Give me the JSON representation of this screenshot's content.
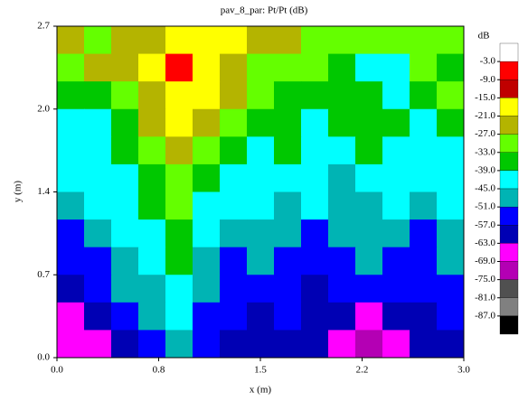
{
  "chart_data": {
    "type": "heatmap",
    "title": "pav_8_par: Pt/Pt (dB)",
    "x_label": "x (m)",
    "y_label": "y (m)",
    "xlim": [
      0,
      3
    ],
    "ylim": [
      0,
      2.7
    ],
    "xticks": [
      {
        "value": 0,
        "label": "0.0"
      },
      {
        "value": 0.75,
        "label": "0.8"
      },
      {
        "value": 1.5,
        "label": "1.5"
      },
      {
        "value": 2.25,
        "label": "2.2"
      },
      {
        "value": 3,
        "label": "3.0"
      }
    ],
    "yticks": [
      {
        "value": 0,
        "label": "0.0"
      },
      {
        "value": 0.675,
        "label": "0.7"
      },
      {
        "value": 1.35,
        "label": "1.4"
      },
      {
        "value": 2.025,
        "label": "2.0"
      },
      {
        "value": 2.7,
        "label": "2.7"
      }
    ],
    "z": [
      [
        -24,
        -30,
        -24,
        -24,
        -18,
        -18,
        -18,
        -24,
        -24,
        -30,
        -30,
        -30,
        -30,
        -30,
        -30
      ],
      [
        -30,
        -24,
        -24,
        -18,
        -6,
        -18,
        -24,
        -30,
        -30,
        -30,
        -36,
        -42,
        -42,
        -30,
        -36
      ],
      [
        -36,
        -36,
        -30,
        -24,
        -18,
        -18,
        -24,
        -30,
        -36,
        -36,
        -36,
        -36,
        -42,
        -36,
        -30
      ],
      [
        -42,
        -42,
        -36,
        -24,
        -18,
        -24,
        -30,
        -36,
        -36,
        -42,
        -36,
        -36,
        -36,
        -42,
        -36
      ],
      [
        -42,
        -42,
        -36,
        -30,
        -24,
        -30,
        -36,
        -42,
        -36,
        -42,
        -42,
        -36,
        -42,
        -42,
        -42
      ],
      [
        -42,
        -42,
        -42,
        -36,
        -30,
        -36,
        -42,
        -42,
        -42,
        -42,
        -48,
        -42,
        -42,
        -42,
        -42
      ],
      [
        -48,
        -42,
        -42,
        -36,
        -30,
        -42,
        -42,
        -42,
        -48,
        -42,
        -48,
        -48,
        -42,
        -48,
        -42
      ],
      [
        -54,
        -48,
        -42,
        -42,
        -36,
        -42,
        -48,
        -48,
        -48,
        -54,
        -48,
        -48,
        -48,
        -54,
        -48
      ],
      [
        -54,
        -54,
        -48,
        -42,
        -36,
        -48,
        -54,
        -48,
        -54,
        -54,
        -54,
        -48,
        -54,
        -54,
        -48
      ],
      [
        -60,
        -54,
        -48,
        -48,
        -42,
        -48,
        -54,
        -54,
        -54,
        -60,
        -54,
        -54,
        -54,
        -54,
        -54
      ],
      [
        -66,
        -60,
        -54,
        -48,
        -42,
        -54,
        -54,
        -60,
        -54,
        -60,
        -60,
        -66,
        -60,
        -60,
        -54
      ],
      [
        -66,
        -66,
        -60,
        -54,
        -48,
        -54,
        -60,
        -60,
        -60,
        -60,
        -66,
        -72,
        -66,
        -60,
        -60
      ]
    ],
    "colorbar": {
      "title": "dB",
      "levels": [
        {
          "value": -3,
          "label": "-3.0"
        },
        {
          "value": -9,
          "label": "-9.0"
        },
        {
          "value": -15,
          "label": "-15.0"
        },
        {
          "value": -21,
          "label": "-21.0"
        },
        {
          "value": -27,
          "label": "-27.0"
        },
        {
          "value": -33,
          "label": "-33.0"
        },
        {
          "value": -39,
          "label": "-39.0"
        },
        {
          "value": -45,
          "label": "-45.0"
        },
        {
          "value": -51,
          "label": "-51.0"
        },
        {
          "value": -57,
          "label": "-57.0"
        },
        {
          "value": -63,
          "label": "-63.0"
        },
        {
          "value": -69,
          "label": "-69.0"
        },
        {
          "value": -75,
          "label": "-75.0"
        },
        {
          "value": -81,
          "label": "-81.0"
        },
        {
          "value": -87,
          "label": "-87.0"
        }
      ],
      "colors": [
        "#ffffff",
        "#ff0000",
        "#c00000",
        "#ffff00",
        "#b4b400",
        "#64ff00",
        "#00c800",
        "#00ffff",
        "#00b4b4",
        "#0000ff",
        "#0000b4",
        "#ff00ff",
        "#b400b4",
        "#505050",
        "#808080",
        "#000000"
      ]
    }
  }
}
